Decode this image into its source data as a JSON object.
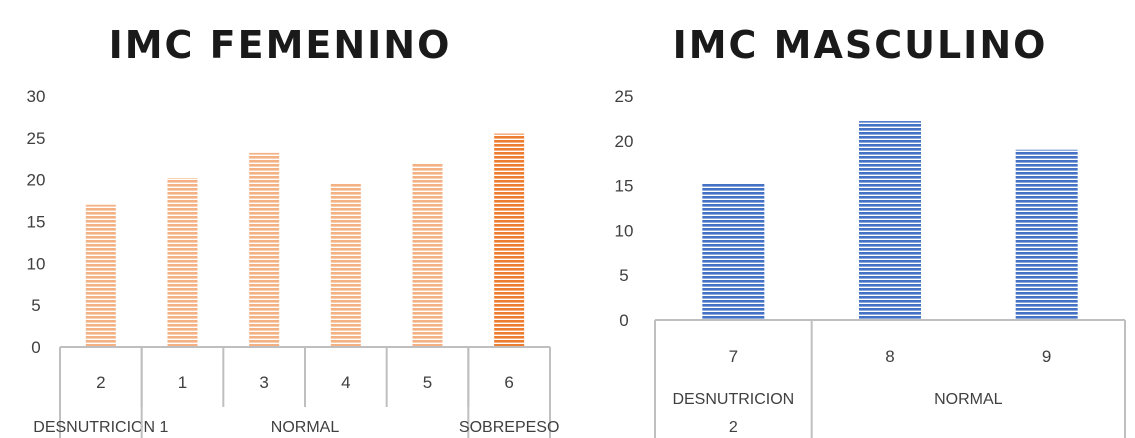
{
  "charts": [
    {
      "title": "IMC FEMENINO",
      "chart_data": {
        "type": "bar",
        "title": "IMC FEMENINO",
        "categories": [
          "2",
          "1",
          "3",
          "4",
          "5",
          "6"
        ],
        "values": [
          17,
          20.2,
          23.2,
          19.5,
          22,
          25.5
        ],
        "ylim": [
          0,
          30
        ],
        "yticks": [
          0,
          5,
          10,
          15,
          20,
          25,
          30
        ],
        "groups": [
          {
            "label": "DESNUTRICION 1",
            "categories": [
              "2"
            ]
          },
          {
            "label": "NORMAL",
            "categories": [
              "1",
              "3",
              "4",
              "5"
            ]
          },
          {
            "label": "SOBREPESO",
            "categories": [
              "6"
            ]
          }
        ],
        "bar_colors": [
          "#f4b183",
          "#f4b183",
          "#f4b183",
          "#f4b183",
          "#f4b183",
          "#ed7d31"
        ],
        "grid": false
      }
    },
    {
      "title": "IMC MASCULINO",
      "chart_data": {
        "type": "bar",
        "title": "IMC MASCULINO",
        "categories": [
          "7",
          "8",
          "9"
        ],
        "values": [
          15.2,
          22.2,
          19
        ],
        "ylim": [
          0,
          25
        ],
        "yticks": [
          0,
          5,
          10,
          15,
          20,
          25
        ],
        "groups": [
          {
            "label": "DESNUTRICION 2",
            "lines": [
              "DESNUTRICION",
              "2"
            ],
            "categories": [
              "7"
            ]
          },
          {
            "label": "NORMAL",
            "categories": [
              "8",
              "9"
            ]
          }
        ],
        "bar_colors": [
          "#4472c4",
          "#4472c4",
          "#4472c4"
        ],
        "grid": false
      }
    }
  ]
}
